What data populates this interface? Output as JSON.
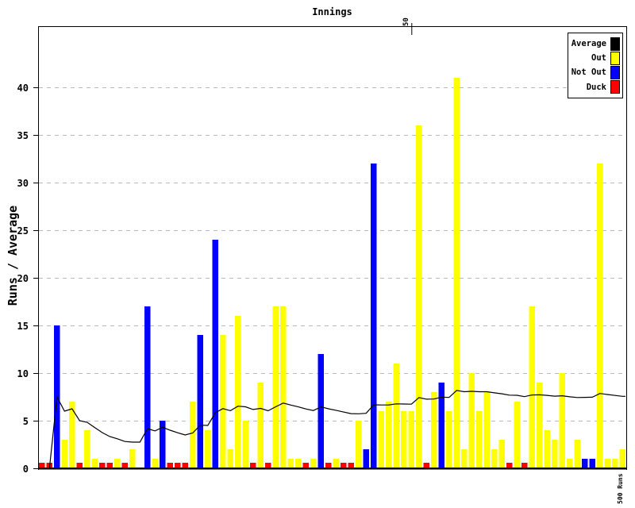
{
  "title": "Innings",
  "y_axis": {
    "label": "Runs / Average",
    "ticks": [
      0,
      5,
      10,
      15,
      20,
      25,
      30,
      35,
      40
    ]
  },
  "x_axis": {
    "tick_label": "50",
    "tick_innings": 50
  },
  "milestone_label": "500 Runs",
  "legend": {
    "entries": [
      {
        "label": "Average",
        "color": "#000000"
      },
      {
        "label": "Out",
        "color": "#ffff00"
      },
      {
        "label": "Not Out",
        "color": "#0000ff"
      },
      {
        "label": "Duck",
        "color": "#ff0000"
      }
    ]
  },
  "colors": {
    "background": "#ffffff",
    "axis": "#000000",
    "grid": "#b9b9b9",
    "out": "#ffff00",
    "not_out": "#0000ff",
    "duck": "#ff0000",
    "average_line": "#000000"
  },
  "chart_data": {
    "type": "bar",
    "title": "Innings",
    "ylabel": "Runs / Average",
    "ylim": [
      0,
      46
    ],
    "innings_count": 78,
    "x_tick": {
      "label": "50",
      "at_innings": 50
    },
    "annotation": "500 Runs",
    "legend_entries": [
      "Average",
      "Out",
      "Not Out",
      "Duck"
    ],
    "status_codes": {
      "o": "out",
      "n": "not out",
      "d": "duck"
    },
    "innings": [
      [
        0,
        "d"
      ],
      [
        0,
        "d"
      ],
      [
        15,
        "n"
      ],
      [
        3,
        "o"
      ],
      [
        7,
        "o"
      ],
      [
        0,
        "d"
      ],
      [
        4,
        "o"
      ],
      [
        1,
        "o"
      ],
      [
        0,
        "d"
      ],
      [
        0,
        "d"
      ],
      [
        1,
        "o"
      ],
      [
        0,
        "d"
      ],
      [
        2,
        "o"
      ],
      [
        0,
        "n"
      ],
      [
        17,
        "n"
      ],
      [
        1,
        "o"
      ],
      [
        5,
        "n"
      ],
      [
        0,
        "d"
      ],
      [
        0,
        "d"
      ],
      [
        0,
        "d"
      ],
      [
        7,
        "o"
      ],
      [
        14,
        "n"
      ],
      [
        4,
        "o"
      ],
      [
        24,
        "n"
      ],
      [
        14,
        "o"
      ],
      [
        2,
        "o"
      ],
      [
        16,
        "o"
      ],
      [
        5,
        "o"
      ],
      [
        0,
        "d"
      ],
      [
        9,
        "o"
      ],
      [
        0,
        "d"
      ],
      [
        17,
        "o"
      ],
      [
        17,
        "o"
      ],
      [
        1,
        "o"
      ],
      [
        1,
        "o"
      ],
      [
        0,
        "d"
      ],
      [
        1,
        "o"
      ],
      [
        12,
        "n"
      ],
      [
        0,
        "d"
      ],
      [
        1,
        "o"
      ],
      [
        0,
        "d"
      ],
      [
        0,
        "d"
      ],
      [
        5,
        "o"
      ],
      [
        2,
        "n"
      ],
      [
        32,
        "n"
      ],
      [
        6,
        "o"
      ],
      [
        7,
        "o"
      ],
      [
        11,
        "o"
      ],
      [
        6,
        "o"
      ],
      [
        6,
        "o"
      ],
      [
        36,
        "o"
      ],
      [
        0,
        "d"
      ],
      [
        8,
        "o"
      ],
      [
        9,
        "n"
      ],
      [
        6,
        "o"
      ],
      [
        41,
        "o"
      ],
      [
        2,
        "o"
      ],
      [
        10,
        "o"
      ],
      [
        6,
        "o"
      ],
      [
        8,
        "o"
      ],
      [
        2,
        "o"
      ],
      [
        3,
        "o"
      ],
      [
        0,
        "d"
      ],
      [
        7,
        "o"
      ],
      [
        0,
        "d"
      ],
      [
        17,
        "o"
      ],
      [
        9,
        "o"
      ],
      [
        4,
        "o"
      ],
      [
        3,
        "o"
      ],
      [
        10,
        "o"
      ],
      [
        1,
        "o"
      ],
      [
        3,
        "o"
      ],
      [
        1,
        "n"
      ],
      [
        1,
        "n"
      ],
      [
        32,
        "o"
      ],
      [
        1,
        "o"
      ],
      [
        1,
        "o"
      ],
      [
        2,
        "o"
      ]
    ],
    "average_series_rule": "cumulative runs divided by cumulative dismissals; out and duck count as dismissals, not out does not"
  }
}
